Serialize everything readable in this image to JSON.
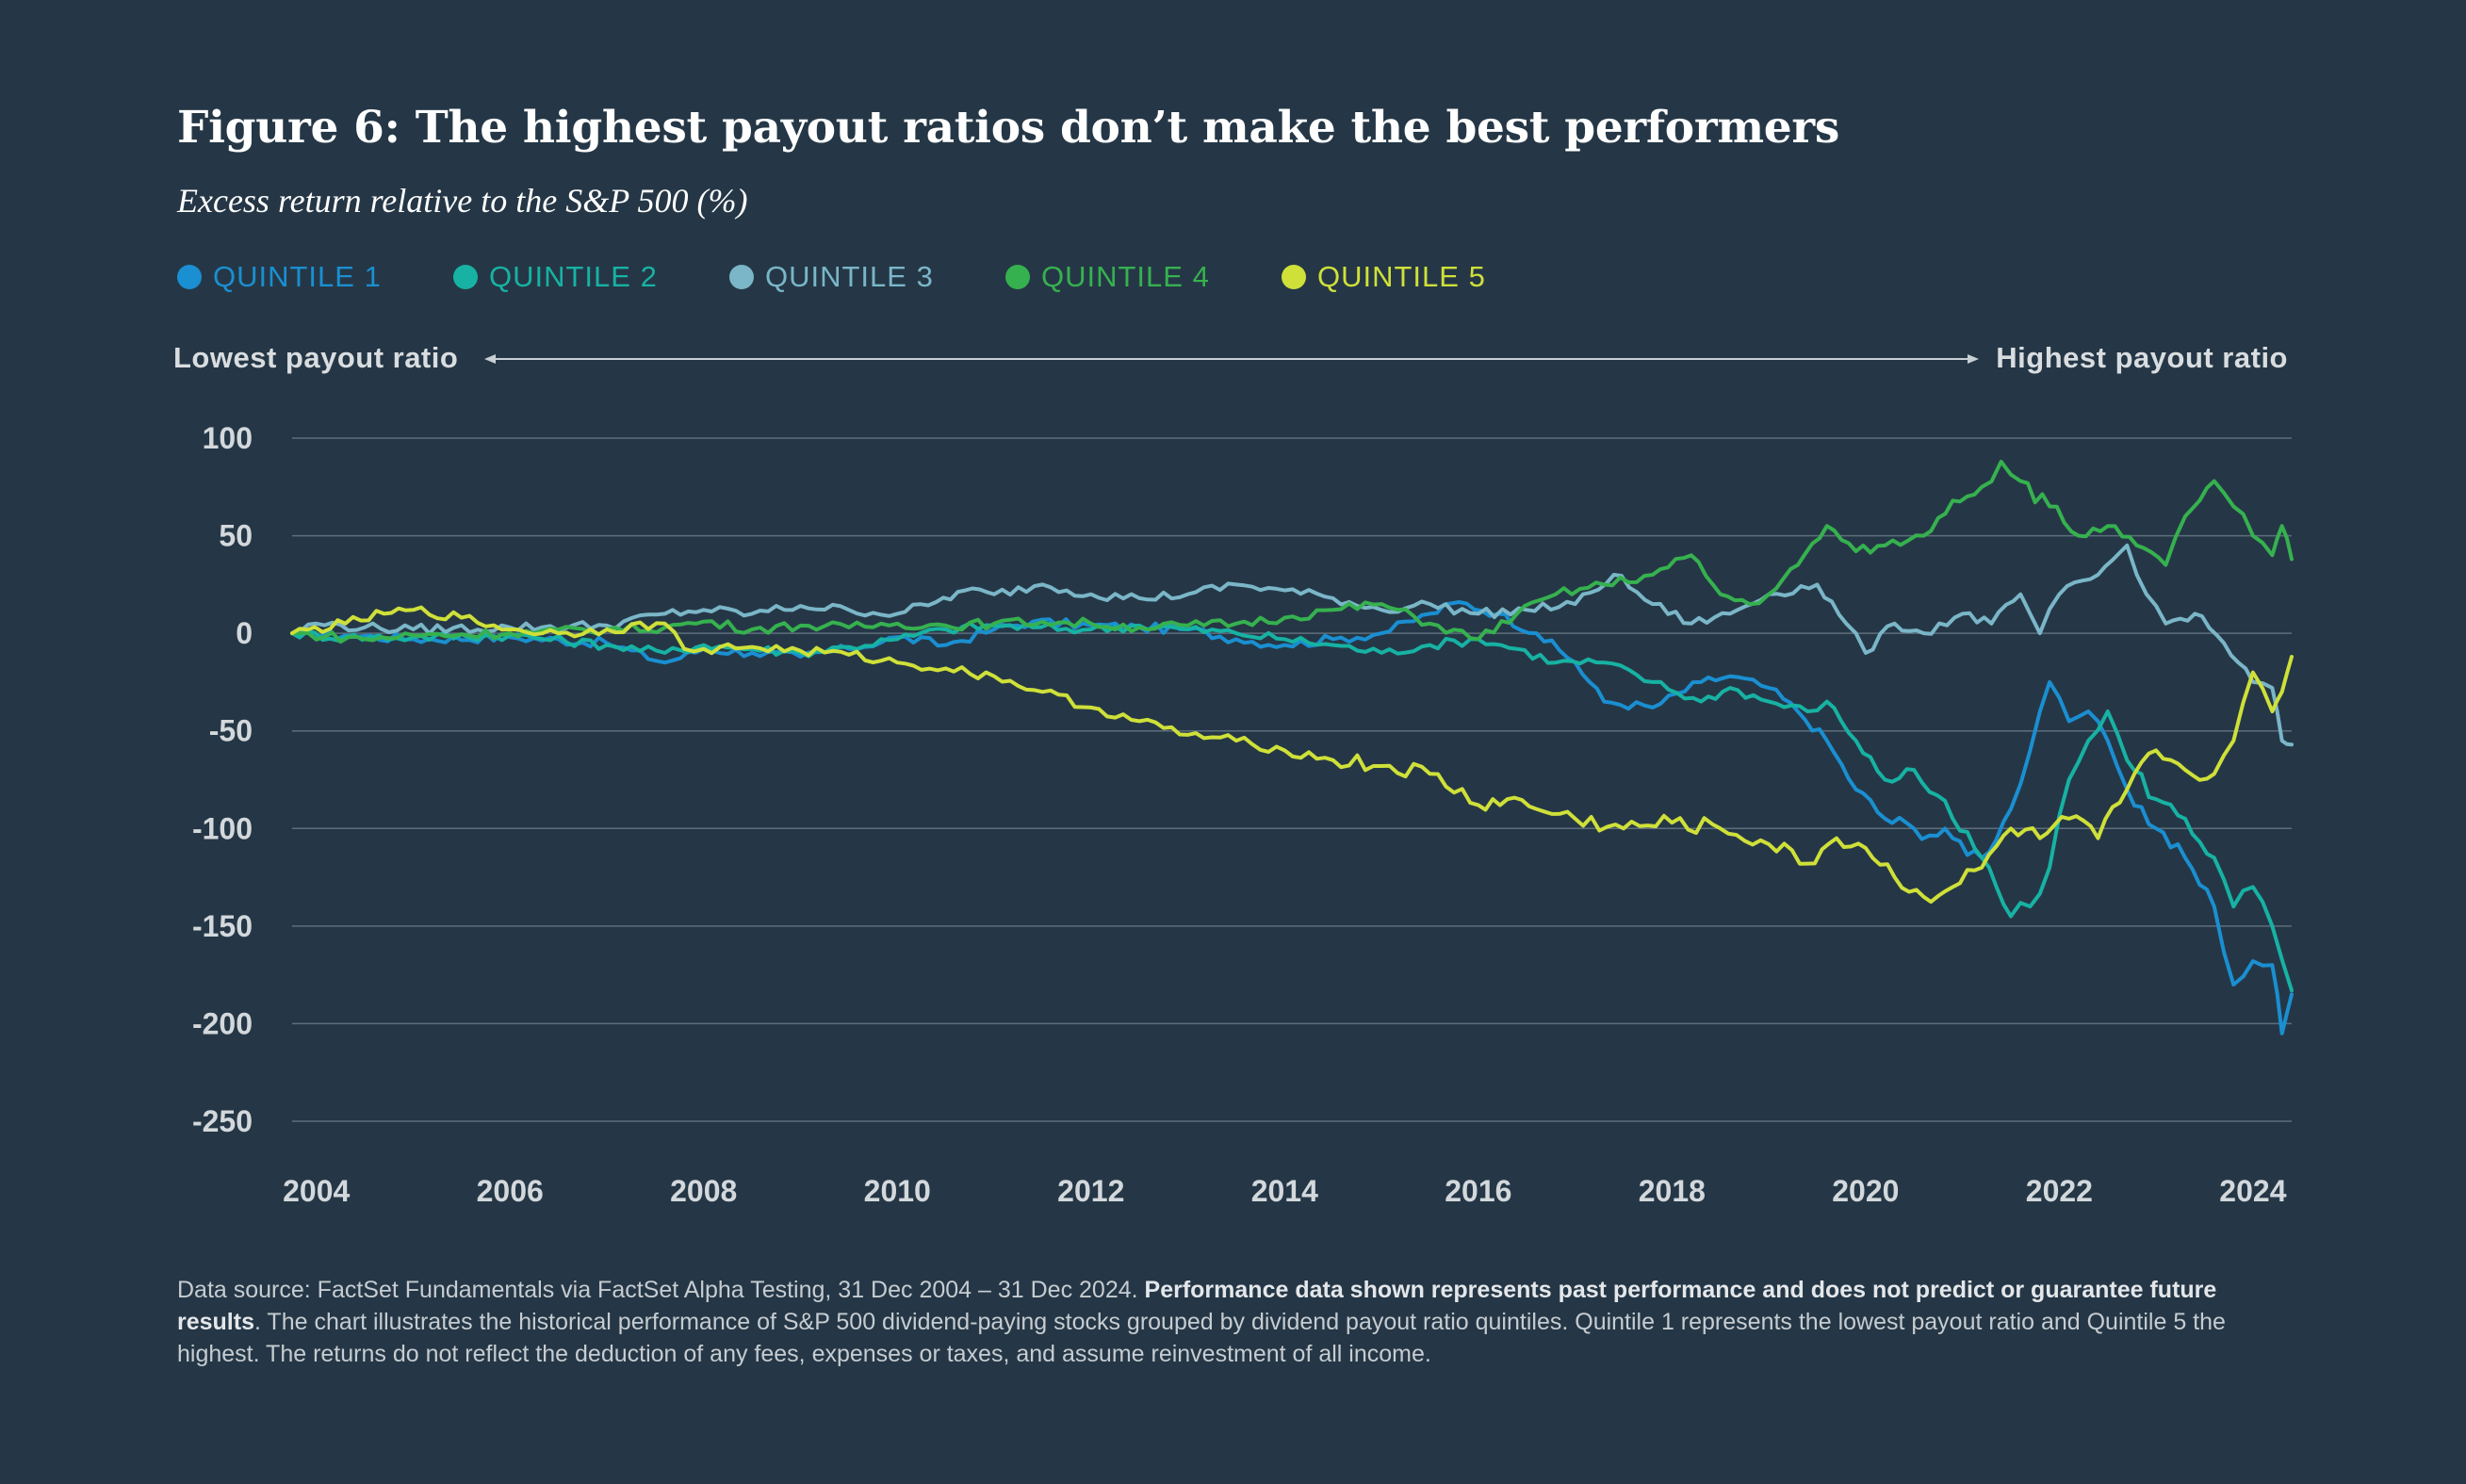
{
  "title": "Figure 6: The highest payout ratios don’t make the best performers",
  "subtitle": "Excess return relative to the S&P 500 (%)",
  "legend": [
    {
      "label": "QUINTILE 1",
      "color": "#1a8fd1"
    },
    {
      "label": "QUINTILE 2",
      "color": "#17b2a3"
    },
    {
      "label": "QUINTILE 3",
      "color": "#7ab6c8"
    },
    {
      "label": "QUINTILE 4",
      "color": "#36b14f"
    },
    {
      "label": "QUINTILE 5",
      "color": "#cfe039"
    }
  ],
  "range": {
    "low": "Lowest payout ratio",
    "high": "Highest payout ratio"
  },
  "footnote": {
    "part1": "Data source: FactSet Fundamentals via FactSet Alpha Testing, 31 Dec 2004 – 31 Dec 2024. ",
    "bold": "Performance data shown represents past performance and does not predict or guarantee future results",
    "part2": ". The chart illustrates the historical performance of S&P 500 dividend-paying stocks grouped by dividend payout ratio quintiles. Quintile 1 represents the lowest payout ratio and Quintile 5 the highest. The returns do not reflect the deduction of any fees, expenses or taxes, and assume reinvestment of all income."
  },
  "chart_data": {
    "type": "line",
    "title": "Figure 6: The highest payout ratios don’t make the best performers",
    "ylabel": "Excess return relative to the S&P 500 (%)",
    "xlabel": "",
    "ylim": [
      -250,
      100
    ],
    "xlim": [
      2003.75,
      2024.4
    ],
    "yticks": [
      100,
      50,
      0,
      -50,
      -100,
      -150,
      -200,
      -250
    ],
    "xticks": [
      2004,
      2006,
      2008,
      2010,
      2012,
      2014,
      2016,
      2018,
      2020,
      2022,
      2024
    ],
    "grid": true,
    "series": [
      {
        "name": "QUINTILE 1",
        "color": "#1a8fd1",
        "points": [
          [
            2003.75,
            0
          ],
          [
            2004.3,
            -1
          ],
          [
            2005.0,
            -3
          ],
          [
            2006.0,
            -2
          ],
          [
            2007.0,
            -5
          ],
          [
            2007.6,
            -15
          ],
          [
            2008.0,
            -8
          ],
          [
            2008.5,
            -10
          ],
          [
            2009.0,
            -12
          ],
          [
            2009.5,
            -8
          ],
          [
            2010.0,
            -2
          ],
          [
            2010.5,
            -6
          ],
          [
            2011.0,
            2
          ],
          [
            2011.4,
            6
          ],
          [
            2012.0,
            4
          ],
          [
            2012.5,
            3
          ],
          [
            2013.0,
            2
          ],
          [
            2013.5,
            -3
          ],
          [
            2014.0,
            -6
          ],
          [
            2014.5,
            -3
          ],
          [
            2015.0,
            0
          ],
          [
            2015.5,
            10
          ],
          [
            2015.8,
            16
          ],
          [
            2016.2,
            10
          ],
          [
            2016.6,
            0
          ],
          [
            2017.0,
            -15
          ],
          [
            2017.3,
            -35
          ],
          [
            2017.8,
            -38
          ],
          [
            2018.3,
            -25
          ],
          [
            2018.6,
            -22
          ],
          [
            2019.0,
            -28
          ],
          [
            2019.3,
            -40
          ],
          [
            2019.6,
            -55
          ],
          [
            2019.9,
            -80
          ],
          [
            2020.2,
            -95
          ],
          [
            2020.5,
            -100
          ],
          [
            2020.9,
            -105
          ],
          [
            2021.2,
            -115
          ],
          [
            2021.5,
            -90
          ],
          [
            2021.7,
            -60
          ],
          [
            2021.9,
            -25
          ],
          [
            2022.1,
            -45
          ],
          [
            2022.3,
            -40
          ],
          [
            2022.5,
            -55
          ],
          [
            2022.7,
            -80
          ],
          [
            2023.0,
            -100
          ],
          [
            2023.3,
            -115
          ],
          [
            2023.6,
            -140
          ],
          [
            2023.8,
            -180
          ],
          [
            2024.0,
            -168
          ],
          [
            2024.2,
            -170
          ],
          [
            2024.3,
            -205
          ],
          [
            2024.4,
            -185
          ]
        ]
      },
      {
        "name": "QUINTILE 2",
        "color": "#17b2a3",
        "points": [
          [
            2003.75,
            0
          ],
          [
            2004.3,
            -2
          ],
          [
            2005.0,
            -2
          ],
          [
            2006.0,
            -1
          ],
          [
            2007.0,
            -6
          ],
          [
            2007.6,
            -10
          ],
          [
            2008.0,
            -6
          ],
          [
            2008.5,
            -8
          ],
          [
            2009.0,
            -10
          ],
          [
            2009.5,
            -7
          ],
          [
            2010.0,
            -3
          ],
          [
            2010.5,
            2
          ],
          [
            2011.0,
            4
          ],
          [
            2011.4,
            3
          ],
          [
            2012.0,
            2
          ],
          [
            2012.5,
            4
          ],
          [
            2013.0,
            2
          ],
          [
            2013.5,
            0
          ],
          [
            2014.0,
            -3
          ],
          [
            2014.5,
            -6
          ],
          [
            2015.0,
            -10
          ],
          [
            2015.5,
            -6
          ],
          [
            2016.0,
            -3
          ],
          [
            2016.4,
            -8
          ],
          [
            2016.8,
            -15
          ],
          [
            2017.3,
            -15
          ],
          [
            2017.8,
            -25
          ],
          [
            2018.3,
            -35
          ],
          [
            2018.6,
            -28
          ],
          [
            2019.0,
            -35
          ],
          [
            2019.4,
            -40
          ],
          [
            2019.6,
            -35
          ],
          [
            2019.9,
            -55
          ],
          [
            2020.2,
            -75
          ],
          [
            2020.5,
            -70
          ],
          [
            2020.9,
            -95
          ],
          [
            2021.2,
            -115
          ],
          [
            2021.5,
            -145
          ],
          [
            2021.7,
            -140
          ],
          [
            2021.9,
            -120
          ],
          [
            2022.1,
            -75
          ],
          [
            2022.3,
            -55
          ],
          [
            2022.5,
            -40
          ],
          [
            2022.7,
            -65
          ],
          [
            2023.0,
            -85
          ],
          [
            2023.3,
            -95
          ],
          [
            2023.6,
            -115
          ],
          [
            2023.8,
            -140
          ],
          [
            2024.0,
            -130
          ],
          [
            2024.2,
            -150
          ],
          [
            2024.4,
            -183
          ]
        ]
      },
      {
        "name": "QUINTILE 3",
        "color": "#7ab6c8",
        "points": [
          [
            2003.75,
            0
          ],
          [
            2004.0,
            5
          ],
          [
            2004.5,
            3
          ],
          [
            2005.0,
            2
          ],
          [
            2006.0,
            3
          ],
          [
            2007.0,
            4
          ],
          [
            2007.6,
            10
          ],
          [
            2008.0,
            12
          ],
          [
            2008.5,
            10
          ],
          [
            2009.0,
            14
          ],
          [
            2009.5,
            12
          ],
          [
            2010.0,
            10
          ],
          [
            2010.4,
            16
          ],
          [
            2010.7,
            22
          ],
          [
            2011.0,
            20
          ],
          [
            2011.5,
            25
          ],
          [
            2012.0,
            20
          ],
          [
            2012.5,
            18
          ],
          [
            2013.0,
            20
          ],
          [
            2013.5,
            25
          ],
          [
            2014.0,
            22
          ],
          [
            2014.5,
            18
          ],
          [
            2015.0,
            12
          ],
          [
            2015.5,
            15
          ],
          [
            2016.0,
            10
          ],
          [
            2016.5,
            12
          ],
          [
            2017.0,
            15
          ],
          [
            2017.4,
            30
          ],
          [
            2017.8,
            15
          ],
          [
            2018.2,
            5
          ],
          [
            2018.6,
            10
          ],
          [
            2019.0,
            20
          ],
          [
            2019.5,
            25
          ],
          [
            2019.8,
            5
          ],
          [
            2020.0,
            -10
          ],
          [
            2020.3,
            5
          ],
          [
            2020.6,
            0
          ],
          [
            2021.0,
            10
          ],
          [
            2021.3,
            5
          ],
          [
            2021.6,
            20
          ],
          [
            2021.8,
            0
          ],
          [
            2022.0,
            20
          ],
          [
            2022.4,
            30
          ],
          [
            2022.7,
            45
          ],
          [
            2022.9,
            20
          ],
          [
            2023.1,
            5
          ],
          [
            2023.4,
            10
          ],
          [
            2023.7,
            -5
          ],
          [
            2024.0,
            -25
          ],
          [
            2024.2,
            -28
          ],
          [
            2024.3,
            -55
          ],
          [
            2024.4,
            -57
          ]
        ]
      },
      {
        "name": "QUINTILE 4",
        "color": "#36b14f",
        "points": [
          [
            2003.75,
            0
          ],
          [
            2004.5,
            -3
          ],
          [
            2005.0,
            -1
          ],
          [
            2006.0,
            0
          ],
          [
            2007.0,
            2
          ],
          [
            2007.6,
            3
          ],
          [
            2008.0,
            6
          ],
          [
            2008.5,
            2
          ],
          [
            2009.0,
            4
          ],
          [
            2009.5,
            3
          ],
          [
            2010.0,
            5
          ],
          [
            2010.5,
            4
          ],
          [
            2011.0,
            5
          ],
          [
            2011.5,
            6
          ],
          [
            2012.0,
            5
          ],
          [
            2012.5,
            3
          ],
          [
            2013.0,
            4
          ],
          [
            2013.5,
            5
          ],
          [
            2014.0,
            8
          ],
          [
            2014.5,
            12
          ],
          [
            2015.0,
            15
          ],
          [
            2015.5,
            5
          ],
          [
            2016.0,
            -3
          ],
          [
            2016.4,
            10
          ],
          [
            2016.8,
            20
          ],
          [
            2017.3,
            25
          ],
          [
            2017.8,
            30
          ],
          [
            2018.2,
            40
          ],
          [
            2018.5,
            20
          ],
          [
            2018.8,
            15
          ],
          [
            2019.0,
            20
          ],
          [
            2019.3,
            35
          ],
          [
            2019.6,
            55
          ],
          [
            2019.9,
            42
          ],
          [
            2020.2,
            45
          ],
          [
            2020.6,
            50
          ],
          [
            2020.9,
            68
          ],
          [
            2021.2,
            75
          ],
          [
            2021.4,
            88
          ],
          [
            2021.6,
            78
          ],
          [
            2021.9,
            65
          ],
          [
            2022.2,
            50
          ],
          [
            2022.5,
            55
          ],
          [
            2022.8,
            45
          ],
          [
            2023.1,
            35
          ],
          [
            2023.3,
            60
          ],
          [
            2023.6,
            78
          ],
          [
            2023.8,
            65
          ],
          [
            2024.0,
            50
          ],
          [
            2024.2,
            40
          ],
          [
            2024.3,
            55
          ],
          [
            2024.4,
            38
          ]
        ]
      },
      {
        "name": "QUINTILE 5",
        "color": "#cfe039",
        "points": [
          [
            2003.75,
            0
          ],
          [
            2004.3,
            5
          ],
          [
            2004.7,
            10
          ],
          [
            2005.0,
            12
          ],
          [
            2005.5,
            8
          ],
          [
            2006.0,
            2
          ],
          [
            2006.5,
            0
          ],
          [
            2007.0,
            2
          ],
          [
            2007.6,
            5
          ],
          [
            2007.8,
            -8
          ],
          [
            2008.0,
            -8
          ],
          [
            2008.5,
            -7
          ],
          [
            2009.0,
            -9
          ],
          [
            2009.5,
            -11
          ],
          [
            2010.0,
            -15
          ],
          [
            2010.5,
            -18
          ],
          [
            2011.0,
            -22
          ],
          [
            2011.5,
            -30
          ],
          [
            2012.0,
            -38
          ],
          [
            2012.5,
            -45
          ],
          [
            2013.0,
            -52
          ],
          [
            2013.5,
            -55
          ],
          [
            2014.0,
            -60
          ],
          [
            2014.5,
            -65
          ],
          [
            2015.0,
            -68
          ],
          [
            2015.5,
            -72
          ],
          [
            2016.0,
            -88
          ],
          [
            2016.3,
            -85
          ],
          [
            2016.6,
            -90
          ],
          [
            2017.0,
            -95
          ],
          [
            2017.5,
            -100
          ],
          [
            2018.0,
            -97
          ],
          [
            2018.5,
            -100
          ],
          [
            2019.0,
            -108
          ],
          [
            2019.4,
            -118
          ],
          [
            2019.7,
            -105
          ],
          [
            2020.0,
            -110
          ],
          [
            2020.3,
            -125
          ],
          [
            2020.6,
            -135
          ],
          [
            2020.9,
            -130
          ],
          [
            2021.2,
            -120
          ],
          [
            2021.5,
            -100
          ],
          [
            2021.8,
            -105
          ],
          [
            2022.1,
            -95
          ],
          [
            2022.4,
            -105
          ],
          [
            2022.7,
            -80
          ],
          [
            2023.0,
            -60
          ],
          [
            2023.3,
            -70
          ],
          [
            2023.6,
            -72
          ],
          [
            2023.8,
            -55
          ],
          [
            2024.0,
            -20
          ],
          [
            2024.2,
            -40
          ],
          [
            2024.3,
            -30
          ],
          [
            2024.4,
            -12
          ]
        ]
      }
    ]
  }
}
